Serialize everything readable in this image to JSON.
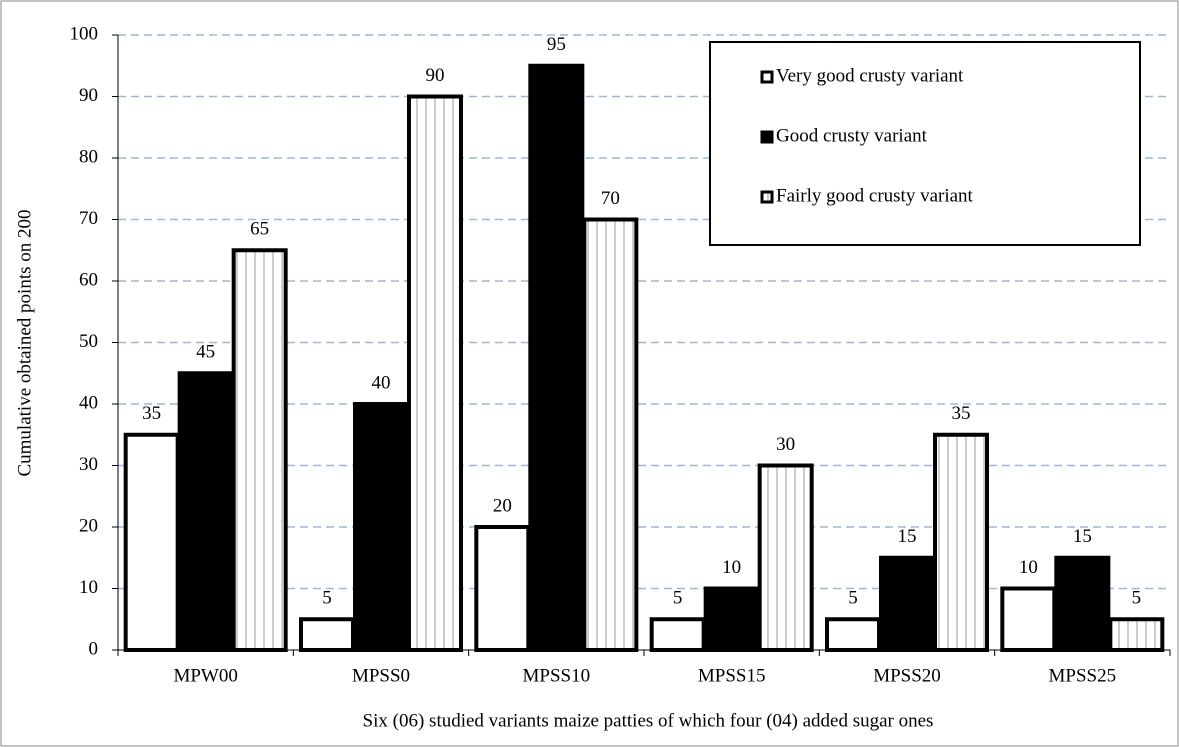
{
  "chart_data": {
    "type": "bar",
    "categories": [
      "MPW00",
      "MPSS0",
      "MPSS10",
      "MPSS15",
      "MPSS20",
      "MPSS25"
    ],
    "series": [
      {
        "name": "Very good crusty variant",
        "color": "#ffffff",
        "values": [
          35,
          5,
          20,
          5,
          5,
          10
        ]
      },
      {
        "name": "Good crusty variant",
        "color": "#000000",
        "values": [
          45,
          40,
          95,
          10,
          15,
          15
        ]
      },
      {
        "name": "Fairly good crusty variant",
        "color": "#ffffff",
        "values": [
          65,
          90,
          70,
          30,
          35,
          5
        ]
      }
    ],
    "ylabel": "Cumulative obtained points on 200",
    "xlabel": "Six (06) studied variants maize patties of which four (04) added sugar ones",
    "ylim": [
      0,
      100
    ],
    "yticks": [
      0,
      10,
      20,
      30,
      40,
      50,
      60,
      70,
      80,
      90,
      100
    ],
    "grid": true,
    "legend": "upper right"
  }
}
